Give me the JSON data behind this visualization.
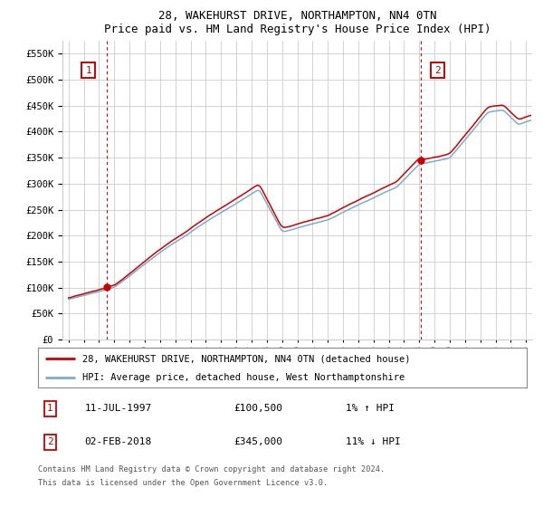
{
  "title": "28, WAKEHURST DRIVE, NORTHAMPTON, NN4 0TN",
  "subtitle": "Price paid vs. HM Land Registry's House Price Index (HPI)",
  "legend_line1": "28, WAKEHURST DRIVE, NORTHAMPTON, NN4 0TN (detached house)",
  "legend_line2": "HPI: Average price, detached house, West Northamptonshire",
  "annotation1_date": "11-JUL-1997",
  "annotation1_price": "£100,500",
  "annotation1_hpi": "1% ↑ HPI",
  "annotation2_date": "02-FEB-2018",
  "annotation2_price": "£345,000",
  "annotation2_hpi": "11% ↓ HPI",
  "footnote1": "Contains HM Land Registry data © Crown copyright and database right 2024.",
  "footnote2": "This data is licensed under the Open Government Licence v3.0.",
  "ylim": [
    0,
    575000
  ],
  "yticks": [
    0,
    50000,
    100000,
    150000,
    200000,
    250000,
    300000,
    350000,
    400000,
    450000,
    500000,
    550000
  ],
  "price_color": "#cc0000",
  "hpi_color": "#7aadcf",
  "background_color": "#ffffff",
  "grid_color": "#cccccc",
  "point1_x": 1997.53,
  "point1_y": 100500,
  "point2_x": 2018.08,
  "point2_y": 345000,
  "xlim_left": 1994.6,
  "xlim_right": 2025.4
}
